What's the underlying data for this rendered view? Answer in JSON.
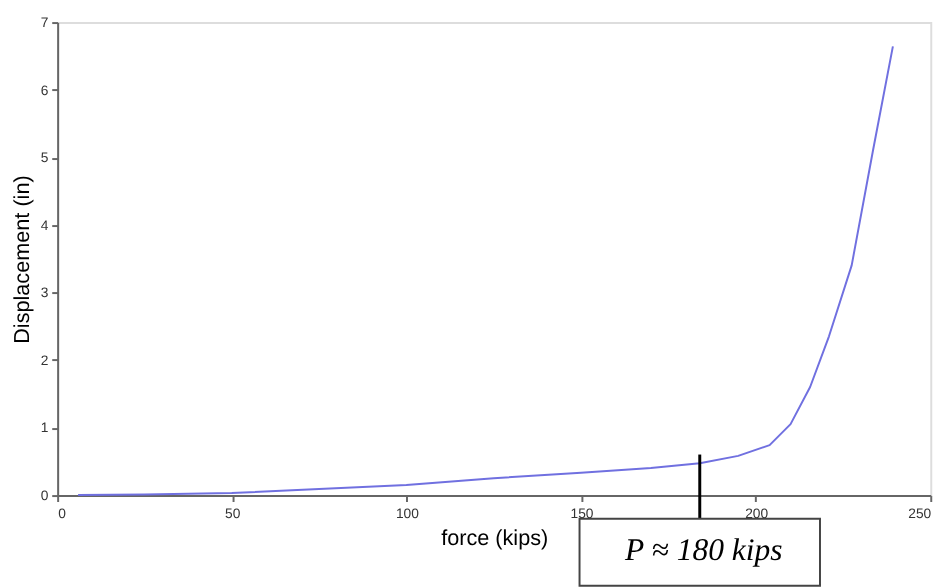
{
  "chart_data": {
    "type": "line",
    "xlabel": "force (kips)",
    "ylabel": "Displacement (in)",
    "x": [
      6,
      25,
      50,
      75,
      100,
      125,
      150,
      170,
      184,
      195,
      204,
      210,
      215.6,
      221,
      227.5,
      233.6,
      239.3
    ],
    "series": [
      {
        "color": "#7070e0",
        "values": [
          0,
          0.01,
          0.03,
          0.09,
          0.15,
          0.25,
          0.33,
          0.4,
          0.47,
          0.58,
          0.74,
          1.05,
          1.6,
          2.35,
          3.4,
          5.1,
          6.64
        ]
      }
    ],
    "xlim": [
      0,
      250
    ],
    "xticks": [
      0,
      50,
      100,
      150,
      200,
      250
    ],
    "ylim": [
      0,
      7
    ],
    "yticks": [
      0,
      1,
      2,
      3,
      4,
      5,
      6,
      7
    ],
    "grid": false,
    "marker": "none",
    "line_style": "solid",
    "annotations": [
      {
        "text": "P ≈ 180 kips",
        "x": 184,
        "y": 0.6
      }
    ]
  }
}
